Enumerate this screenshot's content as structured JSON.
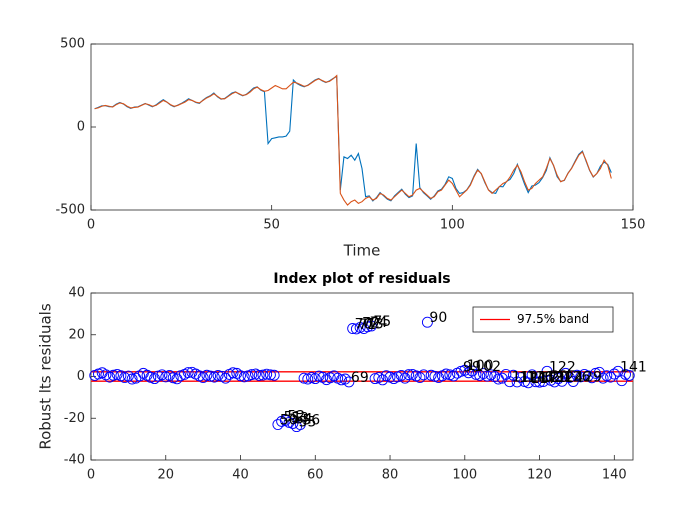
{
  "chart_data": [
    {
      "type": "line",
      "xlabel": "Time",
      "x": [
        1,
        2,
        3,
        4,
        5,
        6,
        7,
        8,
        9,
        10,
        11,
        12,
        13,
        14,
        15,
        16,
        17,
        18,
        19,
        20,
        21,
        22,
        23,
        24,
        25,
        26,
        27,
        28,
        29,
        30,
        31,
        32,
        33,
        34,
        35,
        36,
        37,
        38,
        39,
        40,
        41,
        42,
        43,
        44,
        45,
        46,
        47,
        48,
        49,
        50,
        51,
        52,
        53,
        54,
        55,
        56,
        57,
        58,
        59,
        60,
        61,
        62,
        63,
        64,
        65,
        66,
        67,
        68,
        69,
        70,
        71,
        72,
        73,
        74,
        75,
        76,
        77,
        78,
        79,
        80,
        81,
        82,
        83,
        84,
        85,
        86,
        87,
        88,
        89,
        90,
        91,
        92,
        93,
        94,
        95,
        96,
        97,
        98,
        99,
        100,
        101,
        102,
        103,
        104,
        105,
        106,
        107,
        108,
        109,
        110,
        111,
        112,
        113,
        114,
        115,
        116,
        117,
        118,
        119,
        120,
        121,
        122,
        123,
        124,
        125,
        126,
        127,
        128,
        129,
        130,
        131,
        132,
        133,
        134,
        135,
        136,
        137,
        138,
        139,
        140,
        141,
        142,
        143,
        144
      ],
      "series": [
        {
          "color": "#0072BD",
          "values": [
            110,
            118,
            128,
            128,
            122,
            122,
            138,
            148,
            138,
            122,
            112,
            120,
            122,
            132,
            142,
            132,
            122,
            133,
            150,
            165,
            150,
            132,
            122,
            132,
            142,
            155,
            170,
            160,
            148,
            142,
            162,
            178,
            188,
            205,
            182,
            168,
            172,
            188,
            205,
            212,
            198,
            188,
            197,
            215,
            235,
            242,
            222,
            212,
            -100,
            -70,
            -65,
            -60,
            -60,
            -55,
            -25,
            283,
            262,
            250,
            242,
            252,
            268,
            283,
            292,
            278,
            268,
            278,
            292,
            305,
            -380,
            -180,
            -190,
            -170,
            -200,
            -160,
            -250,
            -420,
            -415,
            -445,
            -425,
            -395,
            -415,
            -435,
            -445,
            -415,
            -395,
            -375,
            -405,
            -425,
            -415,
            -100,
            -365,
            -395,
            -415,
            -435,
            -415,
            -385,
            -375,
            -345,
            -300,
            -310,
            -370,
            -400,
            -395,
            -378,
            -345,
            -295,
            -255,
            -282,
            -335,
            -378,
            -395,
            -400,
            -358,
            -360,
            -328,
            -315,
            -280,
            -225,
            -285,
            -345,
            -395,
            -355,
            -350,
            -335,
            -305,
            -262,
            -185,
            -232,
            -300,
            -328,
            -322,
            -278,
            -248,
            -205,
            -165,
            -145,
            -205,
            -262,
            -302,
            -280,
            -235,
            -212,
            -225,
            -275
          ]
        },
        {
          "color": "#D95319",
          "values": [
            110,
            115,
            125,
            130,
            125,
            120,
            135,
            145,
            140,
            125,
            115,
            118,
            120,
            130,
            140,
            135,
            125,
            130,
            145,
            160,
            150,
            135,
            125,
            130,
            140,
            150,
            165,
            160,
            150,
            145,
            160,
            175,
            185,
            200,
            185,
            170,
            170,
            185,
            200,
            210,
            200,
            190,
            195,
            210,
            230,
            240,
            225,
            215,
            220,
            235,
            250,
            240,
            230,
            230,
            250,
            270,
            265,
            255,
            245,
            250,
            265,
            280,
            290,
            280,
            270,
            275,
            290,
            310,
            -400,
            -440,
            -470,
            -450,
            -440,
            -460,
            -450,
            -430,
            -420,
            -440,
            -430,
            -400,
            -410,
            -430,
            -440,
            -420,
            -400,
            -380,
            -400,
            -420,
            -410,
            -380,
            -370,
            -390,
            -410,
            -430,
            -420,
            -390,
            -380,
            -350,
            -320,
            -340,
            -380,
            -420,
            -400,
            -380,
            -350,
            -300,
            -260,
            -280,
            -330,
            -380,
            -400,
            -380,
            -360,
            -340,
            -330,
            -300,
            -260,
            -230,
            -270,
            -330,
            -380,
            -370,
            -340,
            -320,
            -300,
            -250,
            -190,
            -230,
            -290,
            -330,
            -320,
            -280,
            -250,
            -210,
            -170,
            -150,
            -200,
            -260,
            -300,
            -280,
            -250,
            -200,
            -230,
            -310
          ]
        }
      ],
      "xlim": [
        0,
        150
      ],
      "xticks": [
        0,
        50,
        100,
        150
      ],
      "ylim": [
        -500,
        500
      ],
      "yticks": [
        -500,
        0,
        500
      ]
    },
    {
      "type": "scatter",
      "title": "Index plot of residuals",
      "ylabel": "Robust lts residuals",
      "x": [
        1,
        2,
        3,
        4,
        5,
        6,
        7,
        8,
        9,
        10,
        11,
        12,
        13,
        14,
        15,
        16,
        17,
        18,
        19,
        20,
        21,
        22,
        23,
        24,
        25,
        26,
        27,
        28,
        29,
        30,
        31,
        32,
        33,
        34,
        35,
        36,
        37,
        38,
        39,
        40,
        41,
        42,
        43,
        44,
        45,
        46,
        47,
        48,
        49,
        50,
        51,
        52,
        53,
        54,
        55,
        56,
        57,
        58,
        59,
        60,
        61,
        62,
        63,
        64,
        65,
        66,
        67,
        68,
        69,
        70,
        71,
        72,
        73,
        74,
        75,
        76,
        77,
        78,
        79,
        80,
        81,
        82,
        83,
        84,
        85,
        86,
        87,
        88,
        89,
        90,
        91,
        92,
        93,
        94,
        95,
        96,
        97,
        98,
        99,
        100,
        101,
        102,
        103,
        104,
        105,
        106,
        107,
        108,
        109,
        110,
        111,
        112,
        113,
        114,
        115,
        116,
        117,
        118,
        119,
        120,
        121,
        122,
        123,
        124,
        125,
        126,
        127,
        128,
        129,
        130,
        131,
        132,
        133,
        134,
        135,
        136,
        137,
        138,
        139,
        140,
        141,
        142,
        143,
        144
      ],
      "values": [
        0.5,
        1.2,
        1.8,
        0.8,
        -0.3,
        0.6,
        1.0,
        0.4,
        -0.5,
        0.2,
        -1.2,
        -0.8,
        0.3,
        1.5,
        0.6,
        -0.4,
        -1.0,
        0.2,
        0.8,
        -0.2,
        0.5,
        -0.6,
        -1.1,
        0.4,
        1.0,
        1.9,
        2.0,
        1.2,
        0.3,
        -0.5,
        0.6,
        0.2,
        -0.3,
        0.5,
        0.1,
        -0.8,
        1.0,
        1.8,
        1.5,
        0.4,
        -0.2,
        0.3,
        0.9,
        1.2,
        0.5,
        0.7,
        1.1,
        0.8,
        0.6,
        -23.0,
        -21.5,
        -21.0,
        -22.0,
        -22.5,
        -24.0,
        -23.0,
        -0.8,
        -1.2,
        -0.5,
        -1.0,
        0.2,
        -0.4,
        -1.5,
        -0.6,
        0.3,
        -0.8,
        -1.6,
        -1.2,
        -2.6,
        23.0,
        22.8,
        23.5,
        23.0,
        23.8,
        24.2,
        -1.0,
        -0.5,
        -1.6,
        0.4,
        -0.3,
        -1.0,
        -0.2,
        0.5,
        -0.8,
        0.9,
        1.0,
        0.3,
        -0.5,
        0.8,
        26.0,
        0.6,
        0.1,
        -0.5,
        0.4,
        1.2,
        0.8,
        0.3,
        1.6,
        2.5,
        3.0,
        1.8,
        2.6,
        1.0,
        0.5,
        1.4,
        0.2,
        0.8,
        0.0,
        -1.2,
        -0.8,
        1.0,
        -2.5,
        0.6,
        -2.6,
        -0.5,
        -2.4,
        -3.0,
        0.8,
        -2.5,
        -2.7,
        -2.4,
        2.5,
        -1.8,
        -2.6,
        -1.0,
        -2.3,
        1.5,
        -0.5,
        -2.4,
        0.6,
        -0.2,
        1.0,
        0.3,
        -0.6,
        1.5,
        2.0,
        -0.8,
        0.4,
        -0.3,
        1.2,
        2.5,
        -2.0,
        1.0,
        0.5
      ],
      "marker_color": "#0000ff",
      "labeled_points": [
        50,
        51,
        52,
        53,
        54,
        55,
        56,
        69,
        70,
        71,
        72,
        73,
        74,
        75,
        90,
        99,
        100,
        102,
        112,
        114,
        116,
        117,
        119,
        120,
        121,
        122,
        124,
        126,
        129,
        141
      ],
      "band": {
        "name": "97.5% band",
        "color": "#ff0000",
        "values": [
          -2.24,
          2.24
        ]
      },
      "legend": "upper right",
      "xlim": [
        0,
        145
      ],
      "xticks": [
        0,
        20,
        40,
        60,
        80,
        100,
        120,
        140
      ],
      "ylim": [
        -40,
        40
      ],
      "yticks": [
        -40,
        -20,
        0,
        20,
        40
      ]
    }
  ]
}
